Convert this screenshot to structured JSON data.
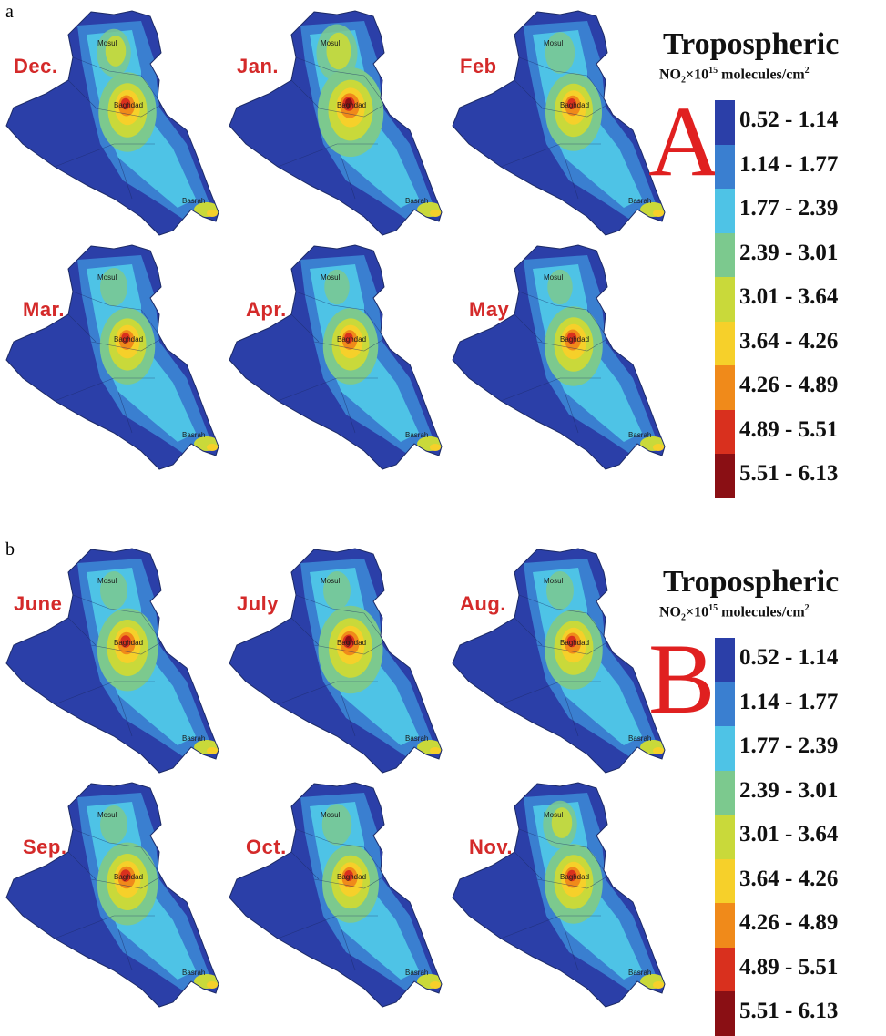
{
  "panels": [
    {
      "letter": "a",
      "maps": [
        {
          "month": "Dec.",
          "hot": 0.65,
          "north": 0.35
        },
        {
          "month": "Jan.",
          "hot": 0.95,
          "north": 0.5
        },
        {
          "month": "Feb",
          "hot": 0.6,
          "north": 0.25
        },
        {
          "month": "Mar.",
          "hot": 0.55,
          "north": 0.2
        },
        {
          "month": "Apr.",
          "hot": 0.55,
          "north": 0.15
        },
        {
          "month": "May",
          "hot": 0.65,
          "north": 0.15
        }
      ],
      "legend_letter": "A"
    },
    {
      "letter": "b",
      "maps": [
        {
          "month": "June",
          "hot": 0.75,
          "north": 0.2
        },
        {
          "month": "July",
          "hot": 0.9,
          "north": 0.2
        },
        {
          "month": "Aug.",
          "hot": 0.65,
          "north": 0.2
        },
        {
          "month": "Sep.",
          "hot": 0.75,
          "north": 0.2
        },
        {
          "month": "Oct.",
          "hot": 0.6,
          "north": 0.25
        },
        {
          "month": "Nov.",
          "hot": 0.65,
          "north": 0.35
        }
      ],
      "legend_letter": "B"
    }
  ],
  "cities": {
    "mosul": "Mosul",
    "baghdad": "Baghdad",
    "basrah": "Basrah"
  },
  "legend": {
    "title": "Tropospheric",
    "unit_prefix": "NO",
    "unit_sub": "2",
    "unit_mid": "×10",
    "unit_exp": "15",
    "unit_suffix": " molecules/cm",
    "unit_sq": "2",
    "ranges": [
      "0.52 - 1.14",
      "1.14 - 1.77",
      "1.77 - 2.39",
      "2.39 - 3.01",
      "3.01 - 3.64",
      "3.64 - 4.26",
      "4.26 - 4.89",
      "4.89 - 5.51",
      "5.51 - 6.13"
    ],
    "colors": [
      "#2b3fa8",
      "#3a7fd0",
      "#4ec3e6",
      "#7cc98e",
      "#c9d93a",
      "#f6d02a",
      "#f08a1a",
      "#d9301e",
      "#8a0f14"
    ]
  }
}
